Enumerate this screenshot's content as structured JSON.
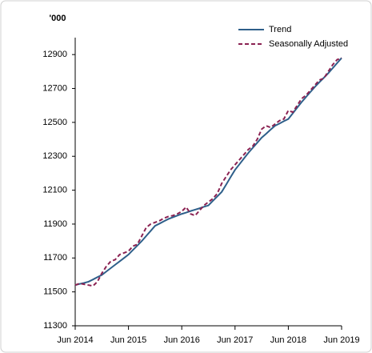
{
  "chart_data": {
    "type": "line",
    "y_unit_label": "'000",
    "categories": [
      "Jun 2014",
      null,
      null,
      null,
      null,
      null,
      null,
      null,
      null,
      null,
      null,
      null,
      "Jun 2015",
      null,
      null,
      null,
      null,
      null,
      null,
      null,
      null,
      null,
      null,
      null,
      "Jun 2016",
      null,
      null,
      null,
      null,
      null,
      null,
      null,
      null,
      null,
      null,
      null,
      "Jun 2017",
      null,
      null,
      null,
      null,
      null,
      null,
      null,
      null,
      null,
      null,
      null,
      "Jun 2018",
      null,
      null,
      null,
      null,
      null,
      null,
      null,
      null,
      null,
      null,
      null,
      "Jun 2019"
    ],
    "series": [
      {
        "name": "Trend",
        "color": "#2e5f8a",
        "dashed": false,
        "values": [
          11540,
          11547,
          11553,
          11560,
          11573,
          11587,
          11600,
          11620,
          11640,
          11660,
          11680,
          11700,
          11720,
          11747,
          11773,
          11800,
          11830,
          11860,
          11890,
          11903,
          11917,
          11930,
          11940,
          11950,
          11960,
          11968,
          11977,
          11985,
          11993,
          12002,
          12010,
          12037,
          12063,
          12090,
          12133,
          12177,
          12220,
          12253,
          12287,
          12320,
          12350,
          12380,
          12410,
          12433,
          12457,
          12480,
          12493,
          12507,
          12520,
          12553,
          12587,
          12620,
          12650,
          12680,
          12710,
          12737,
          12763,
          12790,
          12820,
          12850,
          12880
        ]
      },
      {
        "name": "Seasonally Adjusted",
        "color": "#8b2252",
        "dashed": true,
        "values": [
          11540,
          11550,
          11545,
          11540,
          11535,
          11560,
          11610,
          11650,
          11680,
          11690,
          11720,
          11730,
          11740,
          11770,
          11780,
          11830,
          11880,
          11900,
          11910,
          11920,
          11935,
          11945,
          11950,
          11960,
          11975,
          12000,
          11960,
          11950,
          11980,
          12010,
          12030,
          12050,
          12080,
          12140,
          12180,
          12220,
          12250,
          12280,
          12310,
          12340,
          12360,
          12400,
          12460,
          12480,
          12470,
          12490,
          12510,
          12520,
          12570,
          12560,
          12600,
          12640,
          12660,
          12690,
          12720,
          12750,
          12760,
          12800,
          12840,
          12870,
          12880
        ]
      }
    ],
    "ylim": [
      11300,
      13000
    ],
    "yticks": [
      11300,
      11500,
      11700,
      11900,
      12100,
      12300,
      12500,
      12700,
      12900
    ],
    "grid": false,
    "legend": "top-right"
  }
}
